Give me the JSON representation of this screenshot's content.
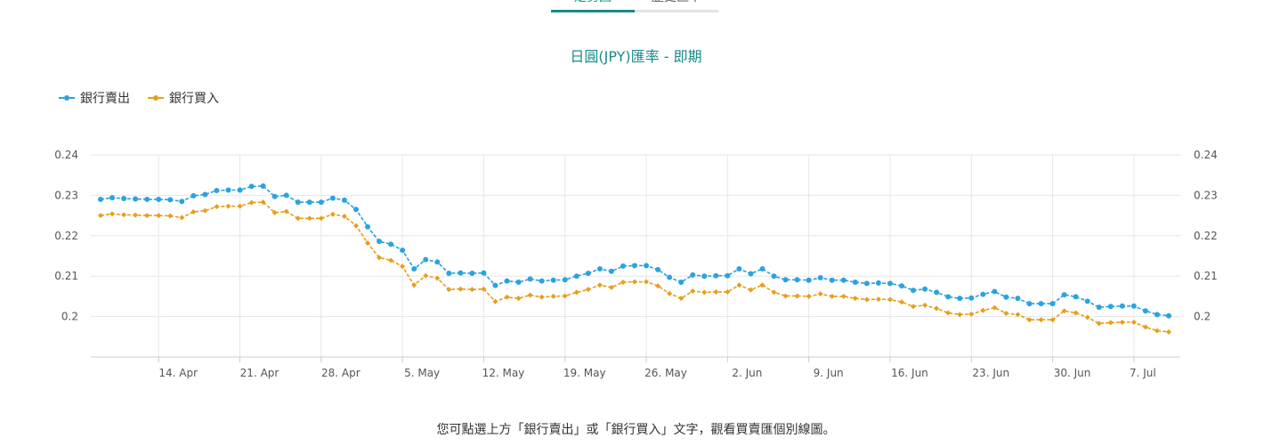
{
  "tabs": [
    {
      "label": "走勢圖",
      "active": true
    },
    {
      "label": "歷史匯率",
      "active": false
    }
  ],
  "footer_note": "您可點選上方「銀行賣出」或「銀行買入」文字，觀看買賣匯個別線圖。",
  "colors": {
    "sell": "#2aa3df",
    "buy": "#e89e1a",
    "accent": "#1a8a8a"
  },
  "chart_data": {
    "type": "line",
    "title": "日圓(JPY)匯率 - 即期",
    "legend": [
      "銀行賣出",
      "銀行買入"
    ],
    "legend_position": "top-left",
    "grid": true,
    "ylim": [
      0.19,
      0.24
    ],
    "yticks": [
      0.24,
      0.23,
      0.22,
      0.21,
      0.2
    ],
    "ytick_labels": [
      "0.24",
      "0.23",
      "0.22",
      "0.21",
      "0.2"
    ],
    "xticks": [
      "14. Apr",
      "21. Apr",
      "28. Apr",
      "5. May",
      "12. May",
      "19. May",
      "26. May",
      "2. Jun",
      "9. Jun",
      "16. Jun",
      "23. Jun",
      "30. Jun",
      "7. Jul"
    ],
    "series": [
      {
        "name": "銀行賣出",
        "values": [
          0.229,
          0.2294,
          0.2292,
          0.2291,
          0.229,
          0.229,
          0.2289,
          0.2285,
          0.2299,
          0.2302,
          0.2312,
          0.2313,
          0.2313,
          0.2322,
          0.2323,
          0.2297,
          0.23,
          0.2283,
          0.2283,
          0.2283,
          0.2293,
          0.2288,
          0.2265,
          0.2222,
          0.2186,
          0.2179,
          0.2164,
          0.2118,
          0.2141,
          0.2135,
          0.2107,
          0.2108,
          0.2107,
          0.2108,
          0.2077,
          0.2088,
          0.2085,
          0.2093,
          0.2088,
          0.209,
          0.2091,
          0.21,
          0.2107,
          0.2118,
          0.2112,
          0.2125,
          0.2126,
          0.2126,
          0.2116,
          0.2097,
          0.2085,
          0.2103,
          0.21,
          0.2101,
          0.2101,
          0.2118,
          0.2106,
          0.2118,
          0.21,
          0.2091,
          0.2091,
          0.209,
          0.2096,
          0.209,
          0.209,
          0.2085,
          0.2082,
          0.2083,
          0.2082,
          0.2076,
          0.2065,
          0.2068,
          0.206,
          0.2049,
          0.2045,
          0.2046,
          0.2055,
          0.2062,
          0.2048,
          0.2045,
          0.2032,
          0.2032,
          0.2032,
          0.2054,
          0.2049,
          0.2038,
          0.2023,
          0.2025,
          0.2026,
          0.2026,
          0.2014,
          0.2005,
          0.2002
        ]
      },
      {
        "name": "銀行買入",
        "values": [
          0.225,
          0.2254,
          0.2252,
          0.2251,
          0.225,
          0.225,
          0.2249,
          0.2245,
          0.2259,
          0.2262,
          0.2272,
          0.2273,
          0.2273,
          0.2282,
          0.2283,
          0.2257,
          0.226,
          0.2243,
          0.2243,
          0.2243,
          0.2253,
          0.2248,
          0.2225,
          0.2182,
          0.2146,
          0.2139,
          0.2124,
          0.2078,
          0.2101,
          0.2095,
          0.2067,
          0.2068,
          0.2067,
          0.2068,
          0.2037,
          0.2048,
          0.2045,
          0.2053,
          0.2048,
          0.205,
          0.2051,
          0.206,
          0.2067,
          0.2078,
          0.2072,
          0.2085,
          0.2086,
          0.2086,
          0.2076,
          0.2057,
          0.2045,
          0.2063,
          0.206,
          0.2061,
          0.2061,
          0.2078,
          0.2066,
          0.2078,
          0.206,
          0.2051,
          0.2051,
          0.205,
          0.2056,
          0.205,
          0.205,
          0.2045,
          0.2042,
          0.2043,
          0.2042,
          0.2036,
          0.2025,
          0.2028,
          0.202,
          0.2009,
          0.2005,
          0.2006,
          0.2015,
          0.2022,
          0.2008,
          0.2005,
          0.1992,
          0.1992,
          0.1992,
          0.2014,
          0.2009,
          0.1998,
          0.1983,
          0.1985,
          0.1986,
          0.1986,
          0.1974,
          0.1965,
          0.1962
        ]
      }
    ]
  }
}
